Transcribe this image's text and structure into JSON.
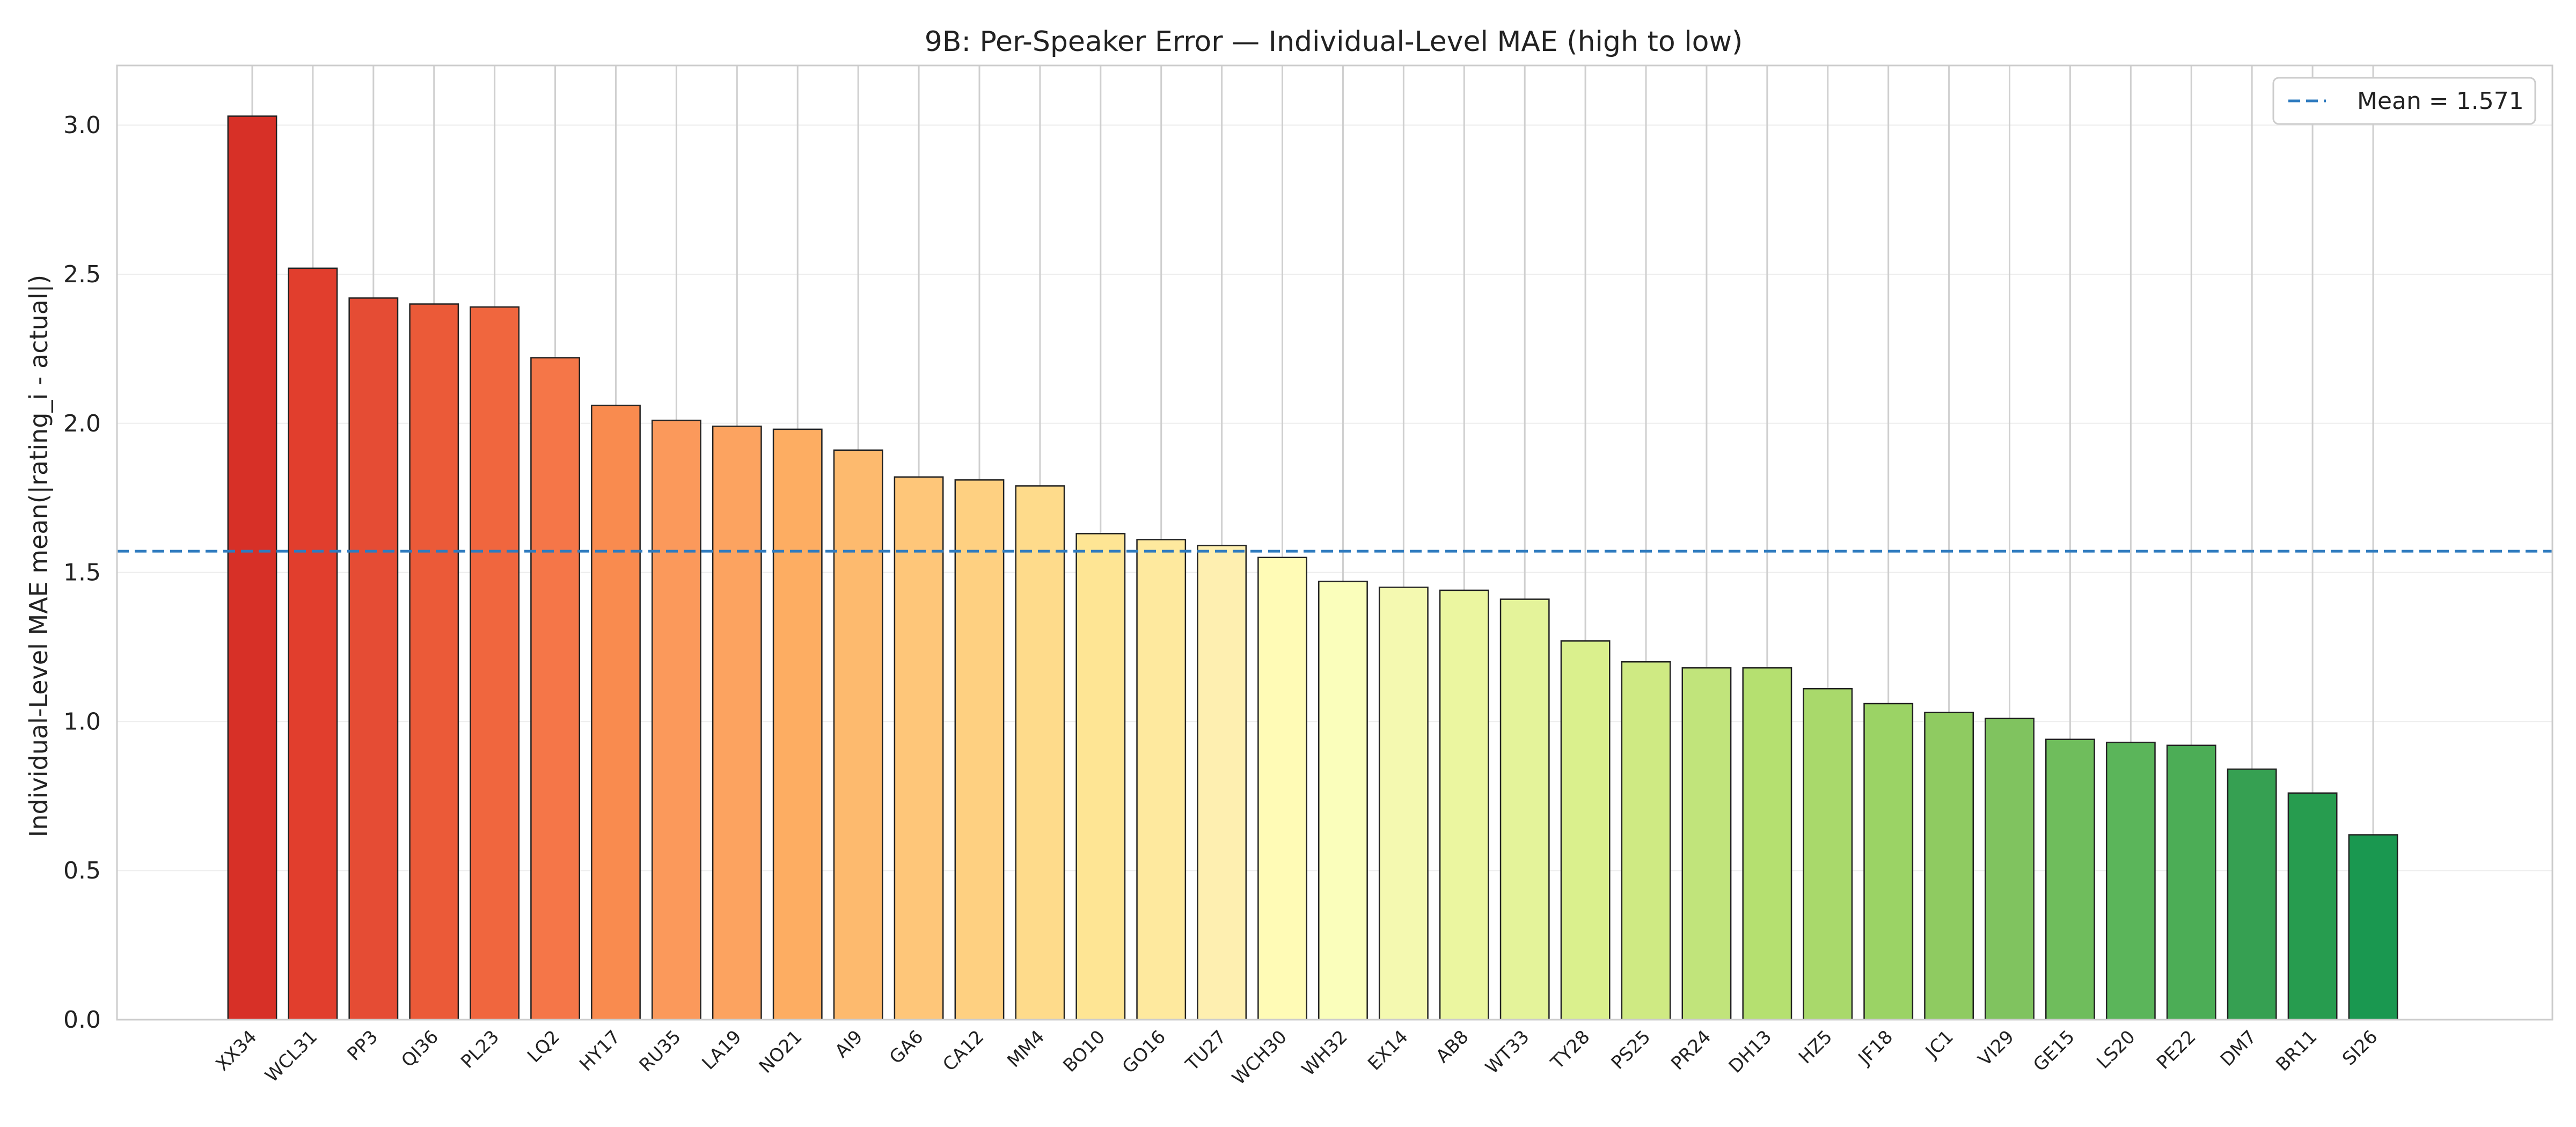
{
  "chart_data": {
    "type": "bar",
    "title": "9B: Per-Speaker Error — Individual-Level MAE  (high to low)",
    "xlabel": "",
    "ylabel": "Individual-Level MAE  mean(|rating_i - actual|)",
    "ylim": [
      0,
      3.2
    ],
    "yticks": [
      0.0,
      0.5,
      1.0,
      1.5,
      2.0,
      2.5,
      3.0
    ],
    "ytick_labels": [
      "0.0",
      "0.5",
      "1.0",
      "1.5",
      "2.0",
      "2.5",
      "3.0"
    ],
    "categories": [
      "XX34",
      "WCL31",
      "PP3",
      "QI36",
      "PL23",
      "LQ2",
      "HY17",
      "RU35",
      "LA19",
      "NO21",
      "AI9",
      "GA6",
      "CA12",
      "MM4",
      "BO10",
      "GO16",
      "TU27",
      "WCH30",
      "WH32",
      "EX14",
      "AB8",
      "WT33",
      "TY28",
      "PS25",
      "PR24",
      "DH13",
      "HZ5",
      "JF18",
      "JC1",
      "VI29",
      "GE15",
      "LS20",
      "PE22",
      "DM7",
      "BR11",
      "SI26"
    ],
    "values": [
      3.03,
      2.52,
      2.42,
      2.4,
      2.39,
      2.22,
      2.06,
      2.01,
      1.99,
      1.98,
      1.91,
      1.82,
      1.81,
      1.79,
      1.63,
      1.61,
      1.59,
      1.55,
      1.47,
      1.45,
      1.44,
      1.41,
      1.27,
      1.2,
      1.18,
      1.18,
      1.11,
      1.06,
      1.03,
      1.01,
      0.94,
      0.93,
      0.92,
      0.84,
      0.76,
      0.62
    ],
    "colors": [
      "#d73027",
      "#e13e2d",
      "#e54c34",
      "#eb5a38",
      "#f0663e",
      "#f57648",
      "#f98b4f",
      "#fb995b",
      "#fca360",
      "#fdad62",
      "#fdba6e",
      "#fec679",
      "#fed081",
      "#fedb8b",
      "#fee594",
      "#fee99e",
      "#feefb0",
      "#fffbb6",
      "#fafebb",
      "#f4f9b0",
      "#ebf6a0",
      "#e4f39a",
      "#daf08d",
      "#cfea83",
      "#c1e47b",
      "#b5e070",
      "#a9d96b",
      "#9bd365",
      "#8fcb61",
      "#80c35f",
      "#6fbd5c",
      "#5bb55a",
      "#4cad56",
      "#36a052",
      "#279c4f",
      "#1a9850"
    ],
    "grid": true,
    "legend": {
      "placement": "top-right",
      "entries": [
        {
          "label": "Mean = 1.571",
          "style": "dashed",
          "color": "#2f7bbf"
        }
      ]
    },
    "mean_line": 1.571
  }
}
